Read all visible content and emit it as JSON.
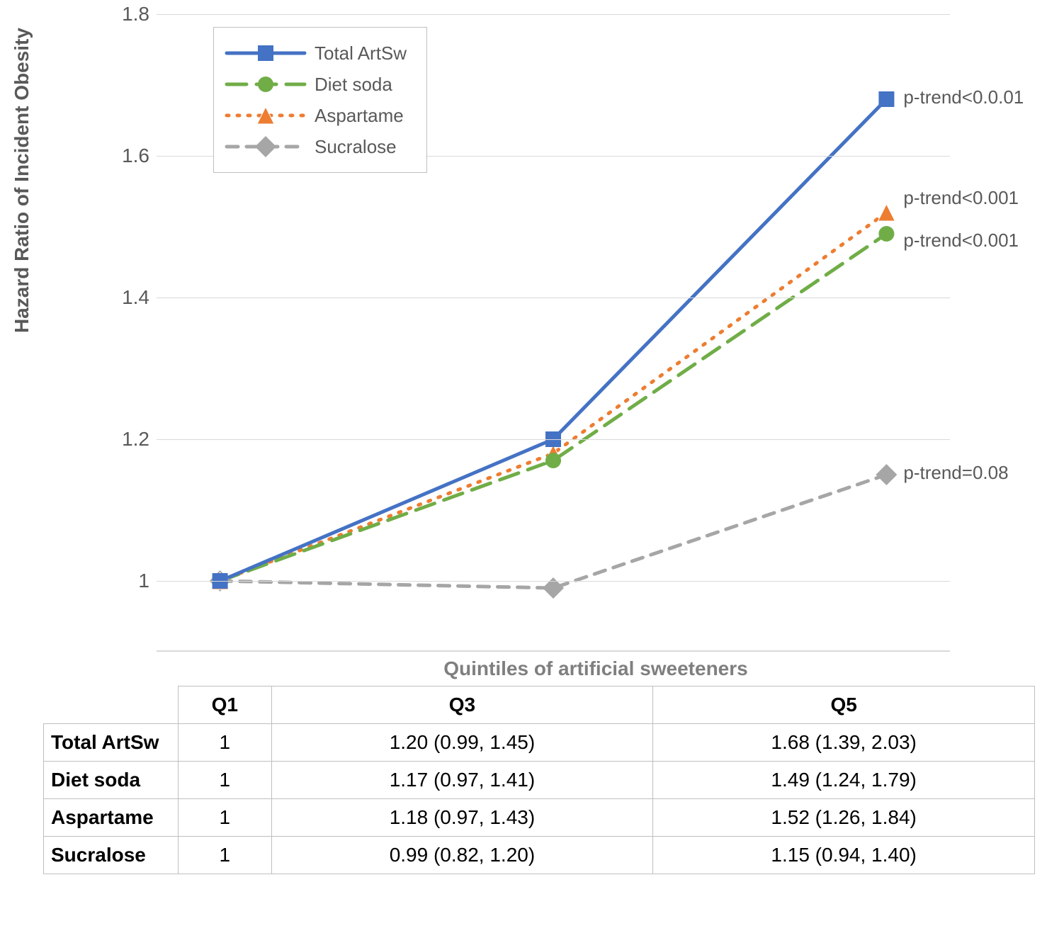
{
  "chart": {
    "type": "line",
    "y_axis_title": "Hazard Ratio of Incident Obesity",
    "x_axis_title": "Quintiles of artificial sweeteners",
    "ylim": [
      0.9,
      1.8
    ],
    "yticks": [
      1,
      1.2,
      1.4,
      1.6,
      1.8
    ],
    "x_categories": [
      "Q1",
      "Q3",
      "Q5"
    ],
    "x_positions_pct": [
      8,
      50,
      92
    ],
    "gridline_color": "#d9d9d9",
    "background_color": "#ffffff",
    "axis_font_color": "#595959",
    "axis_title_color": "#7f7f7f",
    "axis_fontsize": 28,
    "series": [
      {
        "key": "total",
        "label": "Total ArtSw",
        "values": [
          1.0,
          1.2,
          1.68
        ],
        "color": "#4472c4",
        "line_style": "solid",
        "line_width": 5,
        "marker": "square",
        "marker_size": 22,
        "annotation": "p-trend<0.0.01"
      },
      {
        "key": "diet",
        "label": "Diet soda",
        "values": [
          1.0,
          1.17,
          1.49
        ],
        "color": "#70ad47",
        "line_style": "long-dash",
        "line_width": 5,
        "marker": "circle",
        "marker_size": 22,
        "annotation": "p-trend<0.001"
      },
      {
        "key": "aspartame",
        "label": "Aspartame",
        "values": [
          1.0,
          1.18,
          1.52
        ],
        "color": "#ed7d31",
        "line_style": "dotted",
        "line_width": 5,
        "marker": "triangle",
        "marker_size": 24,
        "annotation": "p-trend<0.001"
      },
      {
        "key": "sucralose",
        "label": "Sucralose",
        "values": [
          1.0,
          0.99,
          1.15
        ],
        "color": "#a6a6a6",
        "line_style": "dash",
        "line_width": 5,
        "marker": "diamond",
        "marker_size": 24,
        "annotation": "p-trend=0.08"
      }
    ]
  },
  "table": {
    "columns": [
      "Q1",
      "Q3",
      "Q5"
    ],
    "rows": [
      {
        "label": "Total ArtSw",
        "cells": [
          "1",
          "1.20 (0.99, 1.45)",
          "1.68 (1.39, 2.03)"
        ]
      },
      {
        "label": "Diet soda",
        "cells": [
          "1",
          "1.17 (0.97, 1.41)",
          "1.49 (1.24, 1.79)"
        ]
      },
      {
        "label": "Aspartame",
        "cells": [
          "1",
          "1.18 (0.97, 1.43)",
          "1.52 (1.26, 1.84)"
        ]
      },
      {
        "label": "Sucralose",
        "cells": [
          "1",
          "0.99 (0.82, 1.20)",
          "1.15 (0.94, 1.40)"
        ]
      }
    ]
  }
}
